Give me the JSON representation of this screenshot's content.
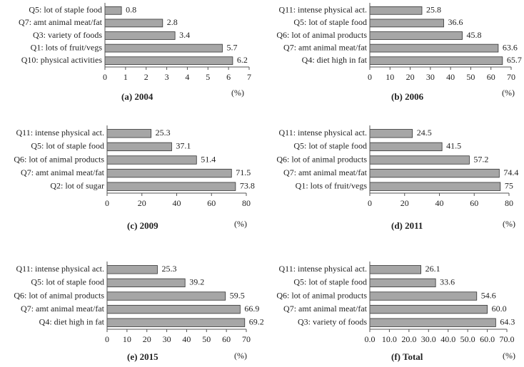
{
  "chart_data": [
    {
      "type": "bar",
      "orientation": "horizontal",
      "caption": "(a) 2004",
      "xlabel": "(%)",
      "color": "#a6a6a6",
      "categories": [
        "Q5: lot of staple food",
        "Q7: amt animal meat/fat",
        "Q3: variety of foods",
        "Q1: lots of fruit/vegs",
        "Q10: physical activities"
      ],
      "values": [
        0.8,
        2.8,
        3.4,
        5.7,
        6.2
      ],
      "xlim": [
        0,
        7
      ],
      "xticks": [
        0,
        1,
        2,
        3,
        4,
        5,
        6,
        7
      ]
    },
    {
      "type": "bar",
      "orientation": "horizontal",
      "caption": "(b) 2006",
      "xlabel": "(%)",
      "color": "#a6a6a6",
      "categories": [
        "Q11: intense physical act.",
        "Q5: lot of staple food",
        "Q6: lot of animal products",
        "Q7: amt animal meat/fat",
        "Q4: diet high in fat"
      ],
      "values": [
        25.8,
        36.6,
        45.8,
        63.6,
        65.7
      ],
      "xlim": [
        0,
        70
      ],
      "xticks": [
        0,
        10,
        20,
        30,
        40,
        50,
        60,
        70
      ]
    },
    {
      "type": "bar",
      "orientation": "horizontal",
      "caption": "(c) 2009",
      "xlabel": "(%)",
      "color": "#a6a6a6",
      "categories": [
        "Q11: intense physical act.",
        "Q5: lot of staple food",
        "Q6: lot of animal products",
        "Q7: amt animal meat/fat",
        "Q2: lot of sugar"
      ],
      "values": [
        25.3,
        37.1,
        51.4,
        71.5,
        73.8
      ],
      "xlim": [
        0,
        80
      ],
      "xticks": [
        0,
        20,
        40,
        60,
        80
      ]
    },
    {
      "type": "bar",
      "orientation": "horizontal",
      "caption": "(d) 2011",
      "xlabel": "(%)",
      "color": "#a6a6a6",
      "categories": [
        "Q11: intense physical act.",
        "Q5: lot of staple food",
        "Q6: lot of animal products",
        "Q7: amt animal meat/fat",
        "Q1: lots of fruit/vegs"
      ],
      "values": [
        24.5,
        41.5,
        57.2,
        74.4,
        75
      ],
      "xlim": [
        0,
        80
      ],
      "xticks": [
        0,
        20,
        40,
        60,
        80
      ]
    },
    {
      "type": "bar",
      "orientation": "horizontal",
      "caption": "(e) 2015",
      "xlabel": "(%)",
      "color": "#a6a6a6",
      "categories": [
        "Q11: intense physical act.",
        "Q5: lot of staple food",
        "Q6: lot of animal products",
        "Q7: amt animal meat/fat",
        "Q4: diet high in fat"
      ],
      "values": [
        25.3,
        39.2,
        59.5,
        66.9,
        69.2
      ],
      "xlim": [
        0,
        70
      ],
      "xticks": [
        0,
        10,
        20,
        30,
        40,
        50,
        60,
        70
      ]
    },
    {
      "type": "bar",
      "orientation": "horizontal",
      "caption": "(f) Total",
      "xlabel": "(%)",
      "color": "#a6a6a6",
      "categories": [
        "Q11: intense physical act.",
        "Q5: lot of staple food",
        "Q6: lot of animal products",
        "Q7: amt animal meat/fat",
        "Q3: variety of foods"
      ],
      "values": [
        26.1,
        33.6,
        54.6,
        60.0,
        64.3
      ],
      "value_labels": [
        "26.1",
        "33.6",
        "54.6",
        "60.0",
        "64.3"
      ],
      "xlim": [
        0,
        70
      ],
      "xticks": [
        {
          "value": 0,
          "label": "0.0"
        },
        {
          "value": 10,
          "label": "10.0"
        },
        {
          "value": 20,
          "label": "20.0"
        },
        {
          "value": 30,
          "label": "30.0"
        },
        {
          "value": 40,
          "label": "40.0"
        },
        {
          "value": 50,
          "label": "50.0"
        },
        {
          "value": 60,
          "label": "60.0"
        },
        {
          "value": 70,
          "label": "70.0"
        }
      ]
    }
  ]
}
